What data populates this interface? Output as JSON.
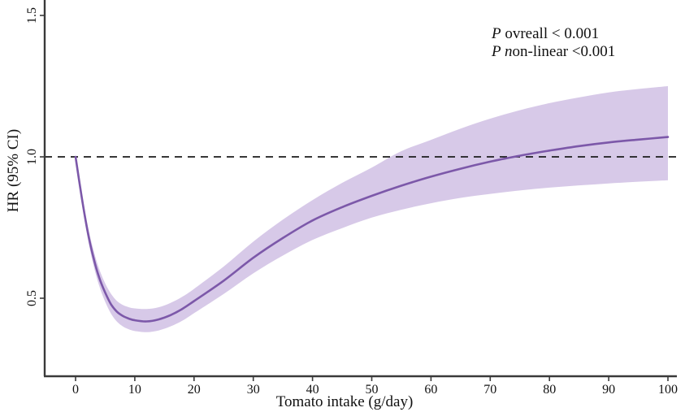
{
  "annotation": {
    "line1": {
      "italic": "P",
      "rest": " ovreall < 0.001"
    },
    "line2": {
      "italic": "P n",
      "rest": "on-linear <0.001"
    }
  },
  "chart_data": {
    "type": "line",
    "title": "",
    "xlabel": "Tomato intake (g/day)",
    "ylabel": "HR (95% CI)",
    "xlim": [
      0,
      100
    ],
    "ylim": [
      0.22,
      1.53
    ],
    "grid": false,
    "legend": "none",
    "reference_line_y": 1.0,
    "x_ticks": [
      0,
      10,
      20,
      30,
      40,
      50,
      60,
      70,
      80,
      90,
      100
    ],
    "x_tick_labels": [
      "0",
      "10",
      "20",
      "30",
      "40",
      "50",
      "60",
      "70",
      "80",
      "90",
      "100"
    ],
    "y_ticks": [
      0.5,
      1.0,
      1.5
    ],
    "y_tick_labels": [
      "0.5",
      "1.0",
      "1.5"
    ],
    "x": [
      0,
      1,
      2,
      3,
      4,
      5,
      6,
      7,
      8,
      9,
      10,
      12,
      14,
      16,
      18,
      20,
      25,
      30,
      35,
      40,
      45,
      50,
      55,
      60,
      65,
      70,
      75,
      80,
      85,
      90,
      95,
      100
    ],
    "series": [
      {
        "name": "hr",
        "values": [
          1.0,
          0.862,
          0.74,
          0.645,
          0.572,
          0.52,
          0.478,
          0.452,
          0.437,
          0.428,
          0.422,
          0.418,
          0.425,
          0.44,
          0.462,
          0.49,
          0.562,
          0.643,
          0.713,
          0.775,
          0.822,
          0.862,
          0.898,
          0.93,
          0.958,
          0.983,
          1.004,
          1.022,
          1.038,
          1.051,
          1.061,
          1.07
        ]
      },
      {
        "name": "ci_upper",
        "values": [
          1.0,
          0.878,
          0.762,
          0.672,
          0.603,
          0.553,
          0.515,
          0.49,
          0.476,
          0.468,
          0.464,
          0.462,
          0.468,
          0.483,
          0.505,
          0.533,
          0.612,
          0.7,
          0.778,
          0.847,
          0.908,
          0.962,
          1.02,
          1.06,
          1.1,
          1.135,
          1.165,
          1.19,
          1.21,
          1.228,
          1.24,
          1.25
        ]
      },
      {
        "name": "ci_lower",
        "values": [
          1.0,
          0.846,
          0.718,
          0.619,
          0.543,
          0.488,
          0.445,
          0.417,
          0.4,
          0.39,
          0.384,
          0.38,
          0.386,
          0.4,
          0.42,
          0.447,
          0.515,
          0.588,
          0.651,
          0.706,
          0.748,
          0.785,
          0.813,
          0.836,
          0.855,
          0.869,
          0.881,
          0.891,
          0.899,
          0.906,
          0.912,
          0.917
        ]
      }
    ],
    "colors": {
      "line": "#7C58A9",
      "band": "#D7C9E8",
      "axis": "#3a3a3a",
      "reference": "#1c1c1c",
      "text": "#111111"
    }
  }
}
